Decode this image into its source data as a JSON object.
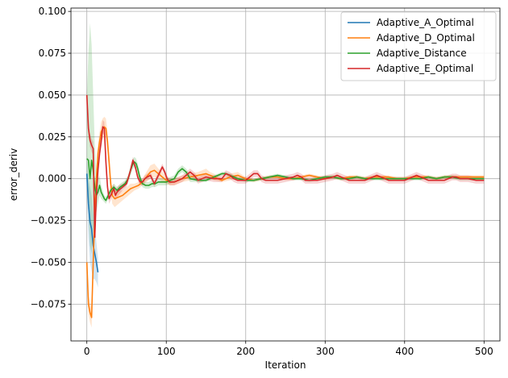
{
  "chart_data": {
    "type": "line",
    "title": "",
    "xlabel": "Iteration",
    "ylabel": "error_deriv",
    "xlim": [
      -20,
      520
    ],
    "ylim": [
      -0.097,
      0.102
    ],
    "xticks": [
      0,
      100,
      200,
      300,
      400,
      500
    ],
    "yticks": [
      -0.075,
      -0.05,
      -0.025,
      0.0,
      0.025,
      0.05,
      0.075,
      0.1
    ],
    "ytick_labels": [
      "−0.075",
      "−0.050",
      "−0.025",
      "0.000",
      "0.025",
      "0.050",
      "0.075",
      "0.100"
    ],
    "grid": true,
    "legend_position": "top-right",
    "series": [
      {
        "name": "Adaptive_A_Optimal",
        "color": "#1f77b4",
        "x": [
          0,
          2,
          4,
          6,
          8,
          10,
          12,
          14
        ],
        "y": [
          0.003,
          -0.015,
          -0.026,
          -0.03,
          -0.04,
          -0.045,
          -0.05,
          -0.056
        ],
        "band_lower": [
          -0.01,
          -0.035,
          -0.05,
          -0.055,
          -0.06,
          -0.06,
          -0.062,
          -0.065
        ],
        "band_upper": [
          0.012,
          0.0,
          -0.005,
          -0.01,
          -0.02,
          -0.028,
          -0.038,
          -0.047
        ]
      },
      {
        "name": "Adaptive_D_Optimal",
        "color": "#ff7f0e",
        "x": [
          0,
          2,
          4,
          6,
          8,
          10,
          12,
          14,
          16,
          18,
          20,
          22,
          24,
          26,
          28,
          30,
          32,
          35,
          40,
          45,
          50,
          55,
          60,
          65,
          70,
          75,
          80,
          85,
          90,
          95,
          100,
          105,
          110,
          115,
          120,
          130,
          140,
          150,
          155,
          160,
          170,
          180,
          190,
          200,
          210,
          220,
          230,
          240,
          250,
          260,
          270,
          280,
          290,
          300,
          310,
          320,
          330,
          340,
          350,
          360,
          370,
          380,
          390,
          400,
          410,
          420,
          430,
          440,
          450,
          460,
          470,
          480,
          490,
          500
        ],
        "y": [
          -0.05,
          -0.075,
          -0.08,
          -0.083,
          -0.05,
          -0.02,
          0.0,
          0.015,
          0.022,
          0.028,
          0.03,
          0.031,
          0.03,
          0.022,
          0.01,
          -0.003,
          -0.01,
          -0.012,
          -0.011,
          -0.01,
          -0.008,
          -0.006,
          -0.005,
          -0.004,
          -0.002,
          0.001,
          0.004,
          0.005,
          0.003,
          0.001,
          -0.001,
          -0.002,
          -0.002,
          -0.001,
          0.0,
          0.001,
          0.002,
          0.003,
          0.002,
          0.001,
          -0.001,
          0.001,
          0.002,
          0.0,
          -0.001,
          0.0,
          0.001,
          0.001,
          0.0,
          0.0,
          0.001,
          0.002,
          0.001,
          0.0,
          0.001,
          0.0,
          0.001,
          0.001,
          0.0,
          0.001,
          0.001,
          0.001,
          0.0,
          0.0,
          0.001,
          0.001,
          0.001,
          0.0,
          0.001,
          0.001,
          0.001,
          0.001,
          0.001,
          0.001
        ],
        "band_lower": [
          -0.056,
          -0.081,
          -0.086,
          -0.089,
          -0.056,
          -0.026,
          -0.006,
          0.009,
          0.016,
          0.022,
          0.024,
          0.025,
          0.024,
          0.016,
          0.004,
          -0.008,
          -0.015,
          -0.017,
          -0.015,
          -0.013,
          -0.011,
          -0.009,
          -0.007,
          -0.006,
          -0.004,
          -0.002,
          0.0,
          0.001,
          0.0,
          -0.002,
          -0.003,
          -0.004,
          -0.004,
          -0.003,
          -0.002,
          -0.001,
          0.0,
          0.0,
          0.0,
          -0.001,
          -0.002,
          -0.001,
          0.0,
          -0.001,
          -0.002,
          -0.001,
          0.0,
          0.0,
          -0.001,
          -0.001,
          0.0,
          0.001,
          0.0,
          -0.001,
          0.0,
          -0.001,
          0.0,
          0.0,
          -0.001,
          0.0,
          0.0,
          0.0,
          -0.001,
          -0.001,
          0.0,
          0.0,
          0.0,
          -0.001,
          0.0,
          0.0,
          0.0,
          0.0,
          0.0,
          0.0
        ],
        "band_upper": [
          -0.044,
          -0.069,
          -0.074,
          -0.077,
          -0.044,
          -0.014,
          0.006,
          0.021,
          0.028,
          0.034,
          0.036,
          0.037,
          0.036,
          0.028,
          0.016,
          0.002,
          -0.005,
          -0.007,
          -0.007,
          -0.007,
          -0.005,
          -0.003,
          -0.003,
          -0.002,
          0.0,
          0.004,
          0.008,
          0.009,
          0.006,
          0.004,
          0.001,
          0.0,
          0.0,
          0.001,
          0.002,
          0.003,
          0.004,
          0.006,
          0.004,
          0.003,
          0.0,
          0.003,
          0.004,
          0.001,
          0.0,
          0.001,
          0.002,
          0.002,
          0.001,
          0.001,
          0.002,
          0.003,
          0.002,
          0.001,
          0.002,
          0.001,
          0.002,
          0.002,
          0.001,
          0.002,
          0.002,
          0.002,
          0.001,
          0.001,
          0.002,
          0.002,
          0.002,
          0.001,
          0.002,
          0.002,
          0.002,
          0.002,
          0.002,
          0.002
        ]
      },
      {
        "name": "Adaptive_Distance",
        "color": "#2ca02c",
        "x": [
          0,
          2,
          4,
          6,
          8,
          10,
          12,
          14,
          16,
          18,
          20,
          22,
          24,
          26,
          28,
          30,
          32,
          34,
          36,
          38,
          40,
          42,
          45,
          48,
          52,
          55,
          58,
          60,
          62,
          64,
          66,
          68,
          70,
          74,
          78,
          82,
          86,
          90,
          95,
          100,
          105,
          110,
          115,
          120,
          125,
          130,
          140,
          150,
          160,
          170,
          175,
          180,
          185,
          190,
          200,
          210,
          220,
          230,
          240,
          250,
          260,
          270,
          280,
          290,
          300,
          310,
          320,
          330,
          340,
          350,
          360,
          370,
          380,
          390,
          400,
          410,
          420,
          430,
          440,
          450,
          460,
          470,
          480,
          490,
          500
        ],
        "y": [
          0.012,
          0.011,
          0.0,
          0.011,
          0.005,
          -0.005,
          -0.01,
          -0.008,
          -0.004,
          -0.008,
          -0.01,
          -0.012,
          -0.013,
          -0.011,
          -0.009,
          -0.007,
          -0.006,
          -0.005,
          -0.006,
          -0.007,
          -0.006,
          -0.005,
          -0.004,
          -0.003,
          0.0,
          0.005,
          0.009,
          0.01,
          0.009,
          0.006,
          0.002,
          -0.001,
          -0.003,
          -0.004,
          -0.004,
          -0.003,
          -0.003,
          -0.002,
          -0.002,
          -0.002,
          -0.001,
          0.0,
          0.004,
          0.006,
          0.004,
          0.0,
          -0.001,
          -0.001,
          0.001,
          0.003,
          0.003,
          0.002,
          0.001,
          0.0,
          -0.001,
          -0.001,
          0.0,
          0.001,
          0.002,
          0.001,
          0.0,
          0.0,
          -0.001,
          0.0,
          0.001,
          0.001,
          0.0,
          0.0,
          0.001,
          0.0,
          0.0,
          0.0,
          0.0,
          0.0,
          0.0,
          0.0,
          0.0,
          0.001,
          0.0,
          0.001,
          0.001,
          0.0,
          0.0,
          0.0,
          0.0
        ],
        "band_lower": [
          0.0,
          -0.02,
          -0.04,
          -0.045,
          -0.03,
          -0.025,
          -0.02,
          -0.015,
          -0.01,
          -0.012,
          -0.013,
          -0.014,
          -0.015,
          -0.013,
          -0.011,
          -0.009,
          -0.008,
          -0.007,
          -0.008,
          -0.009,
          -0.008,
          -0.007,
          -0.006,
          -0.005,
          -0.002,
          0.002,
          0.006,
          0.007,
          0.006,
          0.003,
          -0.001,
          -0.003,
          -0.005,
          -0.006,
          -0.006,
          -0.005,
          -0.005,
          -0.004,
          -0.004,
          -0.004,
          -0.003,
          -0.002,
          0.002,
          0.004,
          0.002,
          -0.002,
          -0.002,
          -0.002,
          0.0,
          0.002,
          0.002,
          0.001,
          0.0,
          -0.001,
          -0.002,
          -0.002,
          -0.001,
          0.0,
          0.001,
          0.0,
          -0.001,
          -0.001,
          -0.002,
          -0.001,
          0.0,
          0.0,
          -0.001,
          -0.001,
          0.0,
          -0.001,
          -0.001,
          -0.001,
          -0.001,
          -0.001,
          -0.001,
          -0.001,
          -0.001,
          0.0,
          -0.001,
          0.0,
          0.0,
          -0.001,
          -0.001,
          -0.001,
          -0.001
        ],
        "band_upper": [
          0.05,
          0.075,
          0.093,
          0.08,
          0.05,
          0.02,
          0.005,
          0.0,
          0.002,
          -0.004,
          -0.007,
          -0.01,
          -0.011,
          -0.009,
          -0.007,
          -0.005,
          -0.004,
          -0.003,
          -0.004,
          -0.005,
          -0.004,
          -0.003,
          -0.002,
          -0.001,
          0.002,
          0.008,
          0.012,
          0.013,
          0.012,
          0.009,
          0.005,
          0.001,
          -0.001,
          -0.002,
          -0.002,
          -0.001,
          -0.001,
          0.0,
          0.0,
          0.0,
          0.001,
          0.002,
          0.006,
          0.008,
          0.006,
          0.002,
          0.0,
          0.0,
          0.002,
          0.004,
          0.004,
          0.003,
          0.002,
          0.001,
          0.0,
          0.0,
          0.001,
          0.002,
          0.003,
          0.002,
          0.001,
          0.001,
          0.0,
          0.001,
          0.002,
          0.002,
          0.001,
          0.001,
          0.002,
          0.001,
          0.001,
          0.001,
          0.001,
          0.001,
          0.001,
          0.001,
          0.001,
          0.002,
          0.001,
          0.002,
          0.002,
          0.001,
          0.001,
          0.001,
          0.001
        ]
      },
      {
        "name": "Adaptive_E_Optimal",
        "color": "#d62728",
        "x": [
          0,
          2,
          4,
          6,
          8,
          10,
          12,
          14,
          16,
          18,
          20,
          22,
          24,
          26,
          28,
          30,
          32,
          34,
          36,
          38,
          40,
          45,
          50,
          55,
          58,
          61,
          64,
          67,
          70,
          73,
          76,
          80,
          85,
          90,
          95,
          98,
          101,
          104,
          107,
          110,
          115,
          120,
          125,
          130,
          135,
          140,
          145,
          150,
          160,
          170,
          175,
          180,
          185,
          190,
          200,
          210,
          215,
          220,
          225,
          230,
          240,
          250,
          260,
          265,
          270,
          275,
          280,
          290,
          300,
          310,
          315,
          320,
          325,
          330,
          340,
          350,
          360,
          365,
          370,
          375,
          380,
          390,
          400,
          410,
          415,
          420,
          425,
          430,
          440,
          450,
          460,
          465,
          470,
          480,
          490,
          500
        ],
        "y": [
          0.05,
          0.03,
          0.023,
          0.02,
          0.018,
          -0.035,
          -0.01,
          0.005,
          0.015,
          0.022,
          0.031,
          0.03,
          0.01,
          -0.005,
          -0.012,
          -0.01,
          -0.008,
          -0.006,
          -0.01,
          -0.008,
          -0.007,
          -0.005,
          -0.003,
          0.005,
          0.011,
          0.007,
          0.001,
          -0.002,
          -0.002,
          0.0,
          0.001,
          0.002,
          -0.003,
          0.002,
          0.007,
          0.004,
          0.0,
          -0.002,
          -0.002,
          -0.002,
          -0.001,
          0.0,
          0.002,
          0.004,
          0.002,
          -0.001,
          0.0,
          0.001,
          0.0,
          0.0,
          0.003,
          0.002,
          0.0,
          -0.001,
          -0.001,
          0.003,
          0.003,
          0.0,
          -0.001,
          -0.001,
          -0.001,
          0.0,
          0.001,
          0.002,
          0.001,
          -0.001,
          -0.001,
          -0.001,
          0.0,
          0.001,
          0.002,
          0.001,
          0.0,
          -0.001,
          -0.001,
          -0.001,
          0.001,
          0.002,
          0.001,
          0.0,
          -0.001,
          -0.001,
          -0.001,
          0.001,
          0.002,
          0.001,
          0.0,
          -0.001,
          -0.001,
          -0.001,
          0.001,
          0.001,
          0.0,
          0.0,
          -0.001,
          -0.001
        ],
        "band_lower": [
          0.046,
          0.026,
          0.019,
          0.016,
          0.014,
          -0.039,
          -0.014,
          0.001,
          0.011,
          0.018,
          0.027,
          0.026,
          0.006,
          -0.009,
          -0.015,
          -0.013,
          -0.011,
          -0.009,
          -0.013,
          -0.011,
          -0.01,
          -0.007,
          -0.005,
          0.003,
          0.009,
          0.005,
          -0.001,
          -0.004,
          -0.004,
          -0.002,
          -0.001,
          0.0,
          -0.005,
          0.0,
          0.005,
          0.002,
          -0.002,
          -0.004,
          -0.004,
          -0.004,
          -0.003,
          -0.002,
          0.0,
          0.002,
          0.0,
          -0.003,
          -0.002,
          -0.001,
          -0.002,
          -0.002,
          0.001,
          0.0,
          -0.002,
          -0.003,
          -0.003,
          0.001,
          0.001,
          -0.002,
          -0.003,
          -0.003,
          -0.003,
          -0.002,
          -0.001,
          0.0,
          -0.001,
          -0.003,
          -0.003,
          -0.003,
          -0.002,
          -0.001,
          0.0,
          -0.001,
          -0.002,
          -0.003,
          -0.003,
          -0.003,
          -0.001,
          0.0,
          -0.001,
          -0.002,
          -0.003,
          -0.003,
          -0.003,
          -0.001,
          0.0,
          -0.001,
          -0.002,
          -0.003,
          -0.003,
          -0.003,
          -0.001,
          -0.001,
          -0.002,
          -0.002,
          -0.003,
          -0.003
        ],
        "band_upper": [
          0.054,
          0.034,
          0.027,
          0.024,
          0.022,
          -0.031,
          -0.006,
          0.009,
          0.019,
          0.026,
          0.035,
          0.034,
          0.014,
          -0.001,
          -0.009,
          -0.007,
          -0.005,
          -0.003,
          -0.007,
          -0.005,
          -0.004,
          -0.003,
          -0.001,
          0.007,
          0.013,
          0.009,
          0.003,
          0.0,
          0.0,
          0.002,
          0.003,
          0.004,
          -0.001,
          0.004,
          0.009,
          0.006,
          0.002,
          0.0,
          0.0,
          0.0,
          0.001,
          0.002,
          0.004,
          0.006,
          0.004,
          0.001,
          0.002,
          0.003,
          0.002,
          0.002,
          0.005,
          0.004,
          0.002,
          0.001,
          0.001,
          0.005,
          0.005,
          0.002,
          0.001,
          0.001,
          0.001,
          0.002,
          0.003,
          0.004,
          0.003,
          0.001,
          0.001,
          0.001,
          0.002,
          0.003,
          0.004,
          0.003,
          0.002,
          0.001,
          0.001,
          0.001,
          0.003,
          0.004,
          0.003,
          0.002,
          0.001,
          0.001,
          0.001,
          0.003,
          0.004,
          0.003,
          0.002,
          0.001,
          0.001,
          0.001,
          0.003,
          0.003,
          0.002,
          0.002,
          0.001,
          0.001
        ]
      }
    ]
  }
}
